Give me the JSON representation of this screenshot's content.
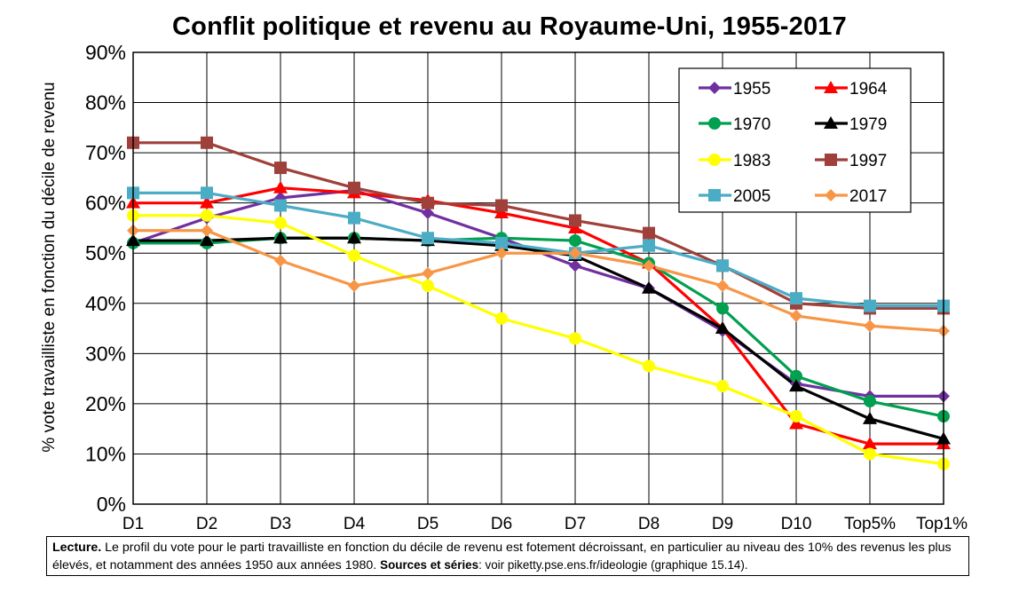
{
  "chart_data": {
    "type": "line",
    "title": "Conflit politique et revenu au Royaume-Uni, 1955-2017",
    "ylabel": "% vote travailliste en fonction du décile de revenu",
    "xlabel": "",
    "categories": [
      "D1",
      "D2",
      "D3",
      "D4",
      "D5",
      "D6",
      "D7",
      "D8",
      "D9",
      "D10",
      "Top5%",
      "Top1%"
    ],
    "ylim": [
      0,
      90
    ],
    "yticks": [
      0,
      10,
      20,
      30,
      40,
      50,
      60,
      70,
      80,
      90
    ],
    "ytick_labels": [
      "0%",
      "10%",
      "20%",
      "30%",
      "40%",
      "50%",
      "60%",
      "70%",
      "80%",
      "90%"
    ],
    "grid": true,
    "legend_position": "top-right",
    "series": [
      {
        "name": "1955",
        "color": "#7030a0",
        "marker": "diamond",
        "values": [
          52,
          57,
          61,
          62.5,
          58,
          53,
          47.5,
          43,
          34.5,
          24,
          21.5,
          21.5
        ]
      },
      {
        "name": "1964",
        "color": "#ff0000",
        "marker": "triangle",
        "values": [
          60,
          60,
          63,
          62,
          60.5,
          58,
          55,
          48,
          35,
          16,
          12,
          12
        ]
      },
      {
        "name": "1970",
        "color": "#00a050",
        "marker": "circle",
        "values": [
          52,
          52,
          53,
          53,
          52.5,
          53,
          52.5,
          48,
          39,
          25.5,
          20.5,
          17.5
        ]
      },
      {
        "name": "1979",
        "color": "#000000",
        "marker": "triangle",
        "values": [
          52.5,
          52.5,
          53,
          53,
          52.5,
          51.5,
          49.5,
          43,
          35,
          23.5,
          17,
          13
        ]
      },
      {
        "name": "1983",
        "color": "#ffff00",
        "marker": "circle",
        "values": [
          57.5,
          57.5,
          56,
          49.5,
          43.5,
          37,
          33,
          27.5,
          23.5,
          17.5,
          10,
          8
        ]
      },
      {
        "name": "1997",
        "color": "#a0403a",
        "marker": "square",
        "values": [
          72,
          72,
          67,
          63,
          60,
          59.5,
          56.5,
          54,
          47.5,
          40,
          39,
          39
        ]
      },
      {
        "name": "2005",
        "color": "#4bacc6",
        "marker": "square",
        "values": [
          62,
          62,
          59.5,
          57,
          53,
          52,
          50,
          51.5,
          47.5,
          41,
          39.5,
          39.5
        ]
      },
      {
        "name": "2017",
        "color": "#f79646",
        "marker": "diamond",
        "values": [
          54.5,
          54.5,
          48.5,
          43.5,
          46,
          50,
          50,
          47.5,
          43.5,
          37.5,
          35.5,
          34.5
        ]
      }
    ]
  },
  "note": {
    "lecture_label": "Lecture.",
    "lecture_text": " Le profil du vote pour le parti travailliste en fonction du décile de revenu est fotement décroissant, en particulier au niveau des 10% des revenus les plus élevés, et notamment des années 1950 aux années 1980.",
    "sources_label": "Sources et séries",
    "sources_text": ": voir piketty.pse.ens.fr/ideologie (graphique 15.14)."
  }
}
